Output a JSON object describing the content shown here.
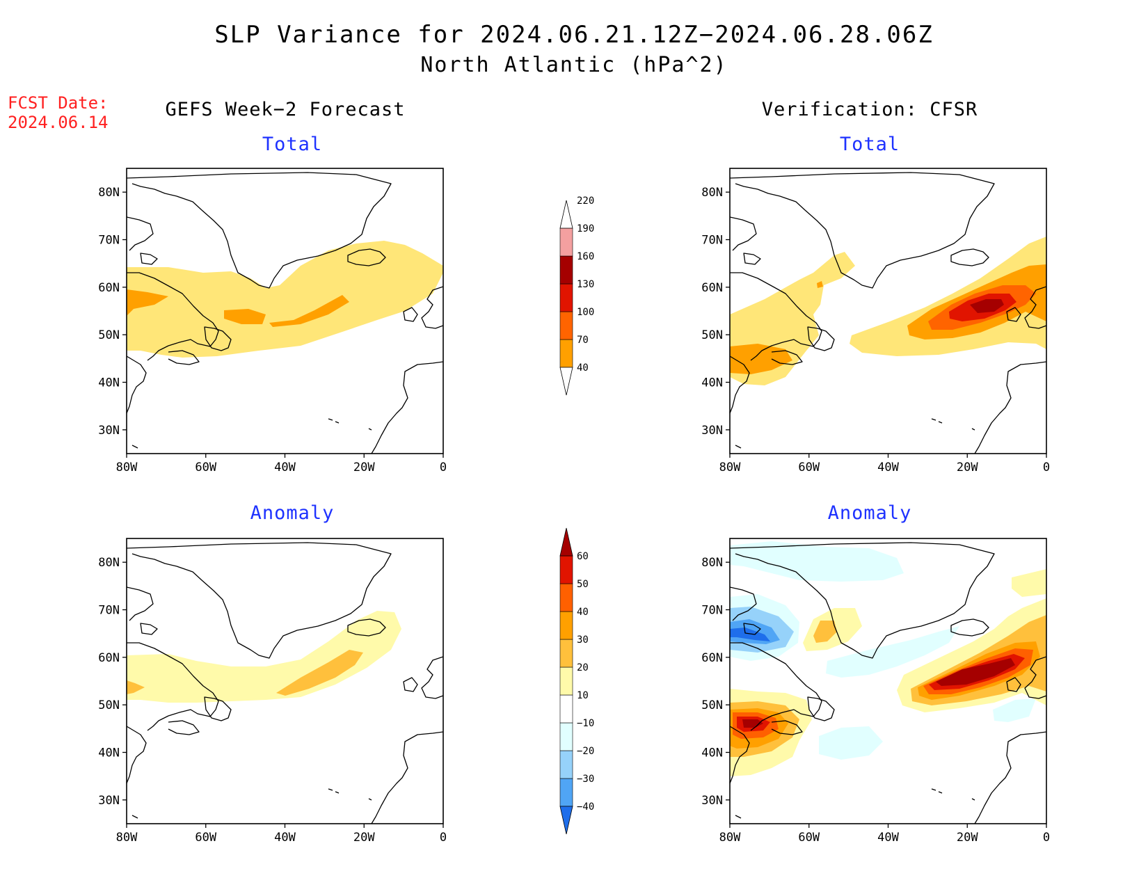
{
  "title_line1": "SLP Variance for 2024.06.21.12Z−2024.06.28.06Z",
  "title_line2": "North Atlantic (hPa^2)",
  "fcst_label": "FCST Date:",
  "fcst_date": "2024.06.14",
  "columns": {
    "left_header": "GEFS Week−2 Forecast",
    "right_header": "Verification: CFSR"
  },
  "panels": {
    "top_left_subtitle": "Total",
    "top_right_subtitle": "Total",
    "bottom_left_subtitle": "Anomaly",
    "bottom_right_subtitle": "Anomaly"
  },
  "axes": {
    "lat_labels": [
      "80N",
      "70N",
      "60N",
      "50N",
      "40N",
      "30N"
    ],
    "lon_labels": [
      "80W",
      "60W",
      "40W",
      "20W",
      "0"
    ],
    "lat_range": [
      25,
      85
    ],
    "lon_range": [
      -80,
      0
    ]
  },
  "colorbars": {
    "total": {
      "levels": [
        "40",
        "70",
        "100",
        "130",
        "160",
        "190",
        "220"
      ],
      "colors": [
        "#ffe678",
        "#ffa000",
        "#ff6400",
        "#e11400",
        "#a50000",
        "#f4a0a0",
        "#ffe6e6"
      ]
    },
    "anomaly": {
      "levels": [
        "−40",
        "−30",
        "−20",
        "−10",
        "10",
        "20",
        "30",
        "40",
        "50",
        "60"
      ],
      "colors": [
        "#1e6eeb",
        "#50a5f5",
        "#96d2fa",
        "#e1ffff",
        "#ffffff",
        "#fffaaa",
        "#ffc03c",
        "#ffa000",
        "#ff6000",
        "#e11400",
        "#a50000"
      ]
    }
  }
}
